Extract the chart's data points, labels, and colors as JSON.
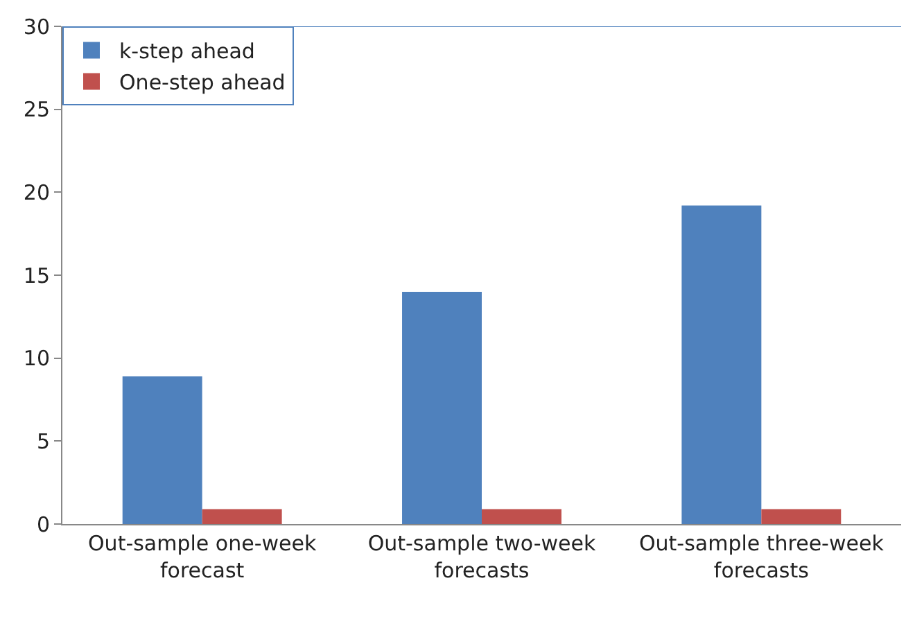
{
  "chart_data": {
    "type": "bar",
    "categories": [
      "Out-sample one-week forecast",
      "Out-sample two-week forecasts",
      "Out-sample three-week forecasts"
    ],
    "series": [
      {
        "name": "k-step ahead",
        "color": "#4f81bd",
        "values": [
          8.9,
          14,
          19.2
        ]
      },
      {
        "name": "One-step ahead",
        "color": "#c0504d",
        "values": [
          0.9,
          0.9,
          0.9
        ]
      }
    ],
    "ylim": [
      0,
      30
    ],
    "yticks": [
      0,
      5,
      10,
      15,
      20,
      25,
      30
    ],
    "legend": "top left"
  }
}
